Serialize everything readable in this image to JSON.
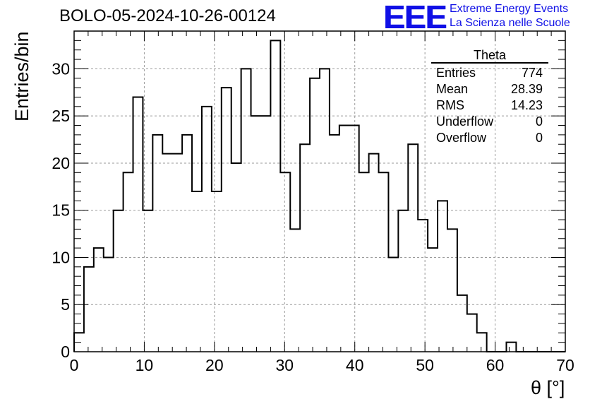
{
  "header": {
    "title": "BOLO-05-2024-10-26-00124",
    "logo_mark": "EEE",
    "logo_line1": "Extreme Energy Events",
    "logo_line2": "La Scienza nelle Scuole"
  },
  "stats_box": {
    "title": "Theta",
    "rows": [
      {
        "label": "Entries",
        "value": "774"
      },
      {
        "label": "Mean",
        "value": "28.39"
      },
      {
        "label": "RMS",
        "value": "14.23"
      },
      {
        "label": "Underflow",
        "value": "0"
      },
      {
        "label": "Overflow",
        "value": "0"
      }
    ]
  },
  "chart_data": {
    "type": "histogram",
    "title": "BOLO-05-2024-10-26-00124",
    "xlabel": "θ [°]",
    "ylabel": "Entries/bin",
    "xlim": [
      0,
      70
    ],
    "ylim": [
      0,
      34
    ],
    "bin_width": 1.4,
    "x_ticks": [
      0,
      10,
      20,
      30,
      40,
      50,
      60,
      70
    ],
    "y_ticks": [
      0,
      5,
      10,
      15,
      20,
      25,
      30
    ],
    "grid": true,
    "line_color": "#000000",
    "values": [
      2,
      9,
      11,
      10,
      15,
      19,
      27,
      15,
      23,
      21,
      21,
      23,
      17,
      26,
      17,
      28,
      20,
      30,
      25,
      25,
      33,
      19,
      13,
      22,
      29,
      30,
      23,
      24,
      24,
      19,
      21,
      19,
      10,
      15,
      22,
      14,
      11,
      16,
      13,
      6,
      4,
      2,
      0,
      0,
      1,
      0,
      0,
      0,
      0,
      0
    ]
  },
  "colors": {
    "logo": "#1010e6",
    "grid": "#9a9a9a",
    "frame": "#000000"
  }
}
